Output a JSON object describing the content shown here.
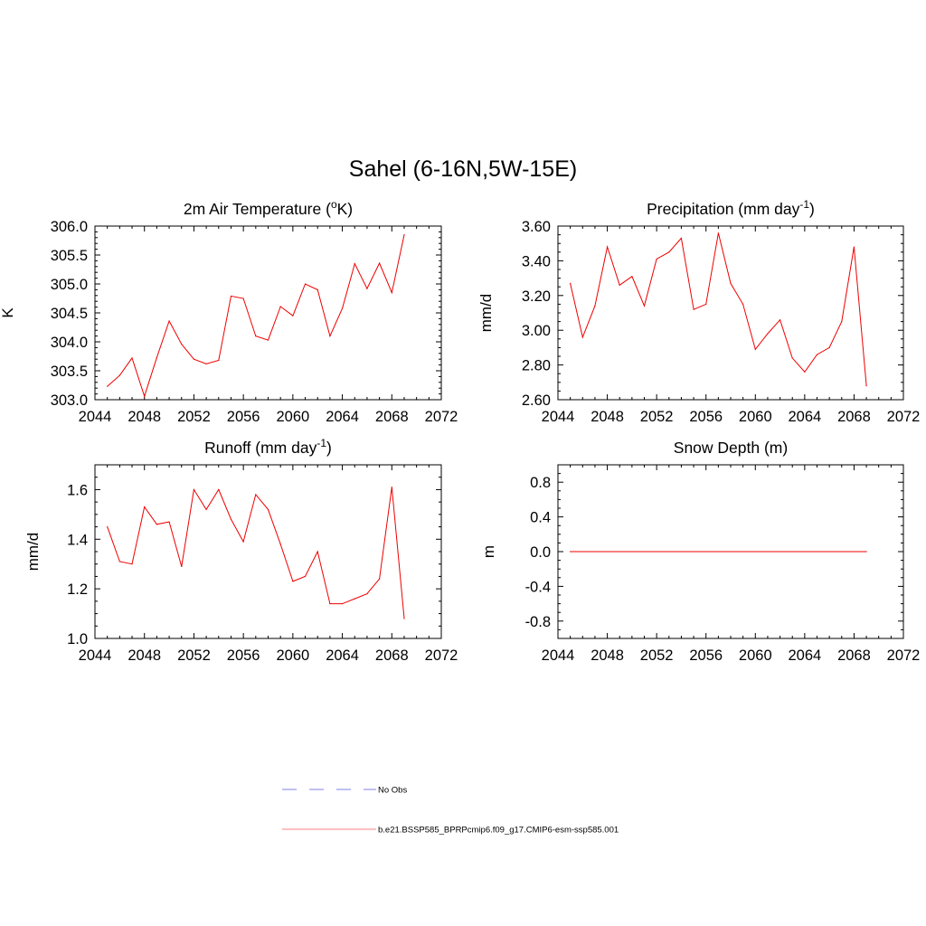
{
  "figure": {
    "title": "Sahel (6-16N,5W-15E)"
  },
  "legend": [
    {
      "label": "No Obs",
      "color": "#9999ee",
      "dash": true
    },
    {
      "label": "b.e21.BSSP585_BPRPcmip6.f09_g17.CMIP6-esm-ssp585.001",
      "color": "#ff9999",
      "dash": false
    }
  ],
  "chart_data": [
    {
      "type": "line",
      "title": "2m Air Temperature (",
      "title_sup": "o",
      "title_after": "K)",
      "ylabel": "K",
      "xlim": [
        2044,
        2072
      ],
      "ylim": [
        303.0,
        306.0
      ],
      "xticks": [
        2044,
        2048,
        2052,
        2056,
        2060,
        2064,
        2068,
        2072
      ],
      "xtick_labels": [
        "2044",
        "2048",
        "2052",
        "2056",
        "2060",
        "2064",
        "2068",
        "2072"
      ],
      "yticks": [
        303.0,
        303.5,
        304.0,
        304.5,
        305.0,
        305.5,
        306.0
      ],
      "ytick_labels": [
        "303.0",
        "303.5",
        "304.0",
        "304.5",
        "305.0",
        "305.5",
        "306.0"
      ],
      "yminor": 0.1,
      "color": "#ee0000",
      "x": [
        2045,
        2046,
        2047,
        2048,
        2049,
        2050,
        2051,
        2052,
        2053,
        2054,
        2055,
        2056,
        2057,
        2058,
        2059,
        2060,
        2061,
        2062,
        2063,
        2064,
        2065,
        2066,
        2067,
        2068,
        2069
      ],
      "y": [
        303.23,
        303.42,
        303.72,
        303.06,
        303.73,
        304.36,
        303.96,
        303.7,
        303.62,
        303.68,
        304.79,
        304.75,
        304.1,
        304.03,
        304.61,
        304.45,
        305.0,
        304.9,
        304.1,
        304.58,
        305.35,
        304.92,
        305.36,
        304.85,
        305.85
      ]
    },
    {
      "type": "line",
      "title": "Precipitation (mm day",
      "title_sup": "-1",
      "title_after": ")",
      "ylabel": "mm/d",
      "xlim": [
        2044,
        2072
      ],
      "ylim": [
        2.6,
        3.6
      ],
      "xticks": [
        2044,
        2048,
        2052,
        2056,
        2060,
        2064,
        2068,
        2072
      ],
      "xtick_labels": [
        "2044",
        "2048",
        "2052",
        "2056",
        "2060",
        "2064",
        "2068",
        "2072"
      ],
      "yticks": [
        2.6,
        2.8,
        3.0,
        3.2,
        3.4,
        3.6
      ],
      "ytick_labels": [
        "2.60",
        "2.80",
        "3.00",
        "3.20",
        "3.40",
        "3.60"
      ],
      "yminor": 0.05,
      "color": "#ee0000",
      "x": [
        2045,
        2046,
        2047,
        2048,
        2049,
        2050,
        2051,
        2052,
        2053,
        2054,
        2055,
        2056,
        2057,
        2058,
        2059,
        2060,
        2061,
        2062,
        2063,
        2064,
        2065,
        2066,
        2067,
        2068,
        2069
      ],
      "y": [
        3.27,
        2.96,
        3.14,
        3.48,
        3.26,
        3.31,
        3.14,
        3.41,
        3.45,
        3.53,
        3.12,
        3.15,
        3.56,
        3.27,
        3.15,
        2.89,
        2.98,
        3.06,
        2.84,
        2.76,
        2.86,
        2.9,
        3.05,
        3.48,
        2.68
      ]
    },
    {
      "type": "line",
      "title": "Runoff (mm day",
      "title_sup": "-1",
      "title_after": ")",
      "ylabel": "mm/d",
      "xlim": [
        2044,
        2072
      ],
      "ylim": [
        1.0,
        1.7
      ],
      "xticks": [
        2044,
        2048,
        2052,
        2056,
        2060,
        2064,
        2068,
        2072
      ],
      "xtick_labels": [
        "2044",
        "2048",
        "2052",
        "2056",
        "2060",
        "2064",
        "2068",
        "2072"
      ],
      "yticks": [
        1.0,
        1.2,
        1.4,
        1.6
      ],
      "ytick_labels": [
        "1.0",
        "1.2",
        "1.4",
        "1.6"
      ],
      "yminor": 0.05,
      "color": "#ee0000",
      "x": [
        2045,
        2046,
        2047,
        2048,
        2049,
        2050,
        2051,
        2052,
        2053,
        2054,
        2055,
        2056,
        2057,
        2058,
        2059,
        2060,
        2061,
        2062,
        2063,
        2064,
        2065,
        2066,
        2067,
        2068,
        2069
      ],
      "y": [
        1.45,
        1.31,
        1.3,
        1.53,
        1.46,
        1.47,
        1.29,
        1.6,
        1.52,
        1.6,
        1.48,
        1.39,
        1.58,
        1.52,
        1.38,
        1.23,
        1.25,
        1.35,
        1.14,
        1.14,
        1.16,
        1.18,
        1.24,
        1.61,
        1.08
      ]
    },
    {
      "type": "line",
      "title": "Snow Depth (m)",
      "title_sup": "",
      "title_after": "",
      "ylabel": "m",
      "xlim": [
        2044,
        2072
      ],
      "ylim": [
        -1.0,
        1.0
      ],
      "xticks": [
        2044,
        2048,
        2052,
        2056,
        2060,
        2064,
        2068,
        2072
      ],
      "xtick_labels": [
        "2044",
        "2048",
        "2052",
        "2056",
        "2060",
        "2064",
        "2068",
        "2072"
      ],
      "yticks": [
        -0.8,
        -0.4,
        0.0,
        0.4,
        0.8
      ],
      "ytick_labels": [
        "-0.8",
        "-0.4",
        "0.0",
        "0.4",
        "0.8"
      ],
      "yminor": 0.1,
      "color": "#ee0000",
      "x": [
        2045,
        2069
      ],
      "y": [
        0.0,
        0.0
      ]
    }
  ]
}
